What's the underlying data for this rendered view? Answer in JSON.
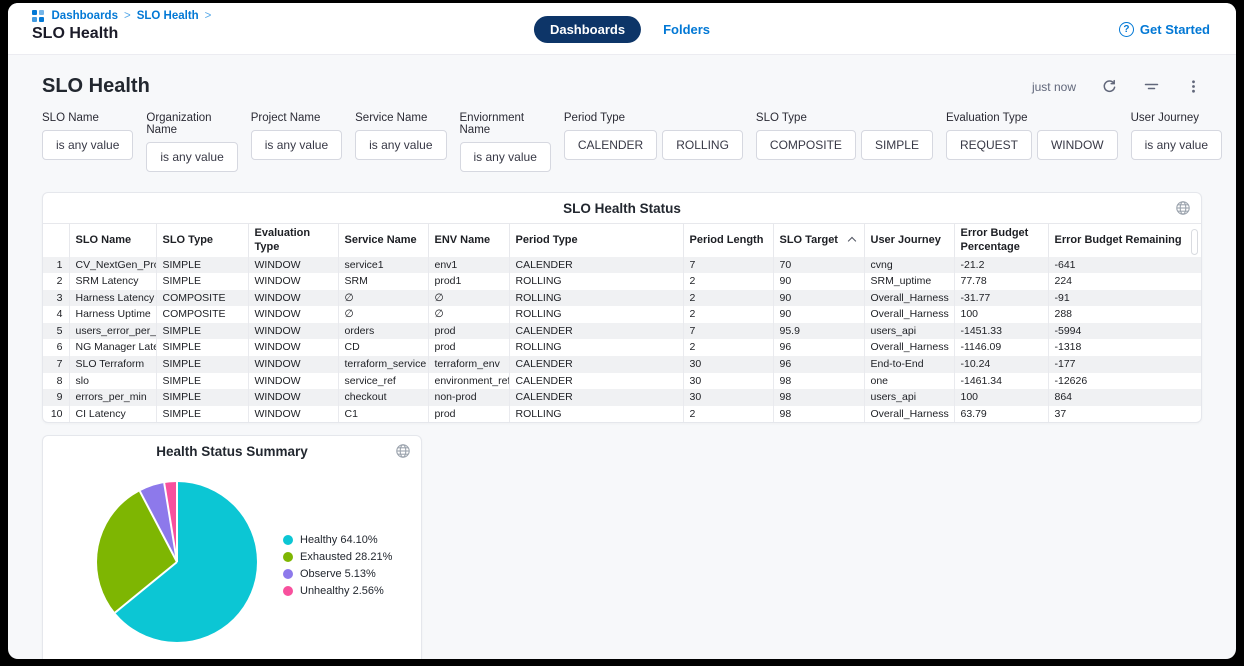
{
  "topbar": {
    "breadcrumb": {
      "items": [
        "Dashboards",
        "SLO Health"
      ],
      "separator": ">"
    },
    "page_title": "SLO Health",
    "tabs": {
      "dashboards": "Dashboards",
      "folders": "Folders"
    },
    "help": {
      "label": "Get Started",
      "icon_glyph": "?"
    }
  },
  "dashboard": {
    "title": "SLO Health",
    "refreshed": "just now"
  },
  "filters": [
    {
      "label": "SLO Name",
      "buttons": [
        {
          "text": "is any value"
        }
      ]
    },
    {
      "label": "Organization Name",
      "buttons": [
        {
          "text": "is any value"
        }
      ]
    },
    {
      "label": "Project Name",
      "buttons": [
        {
          "text": "is any value"
        }
      ]
    },
    {
      "label": "Service Name",
      "buttons": [
        {
          "text": "is any value"
        }
      ]
    },
    {
      "label": "Enviornment Name",
      "buttons": [
        {
          "text": "is any value"
        }
      ]
    },
    {
      "label": "Period Type",
      "buttons": [
        {
          "text": "CALENDER"
        },
        {
          "text": "ROLLING"
        }
      ]
    },
    {
      "label": "SLO Type",
      "buttons": [
        {
          "text": "COMPOSITE"
        },
        {
          "text": "SIMPLE"
        }
      ]
    },
    {
      "label": "Evaluation Type",
      "buttons": [
        {
          "text": "REQUEST"
        },
        {
          "text": "WINDOW"
        }
      ]
    },
    {
      "label": "User Journey",
      "buttons": [
        {
          "text": "is any value"
        }
      ]
    }
  ],
  "table": {
    "title": "SLO Health Status",
    "columns": [
      "SLO Name",
      "SLO Type",
      "Evaluation Type",
      "Service Name",
      "ENV Name",
      "Period Type",
      "Period Length",
      "SLO Target",
      "User Journey",
      "Error Budget Percentage",
      "Error Budget Remaining"
    ],
    "sorted_column": "SLO Target",
    "sort_direction": "asc",
    "rows": [
      [
        "CV_NextGen_Prod",
        "SIMPLE",
        "WINDOW",
        "service1",
        "env1",
        "CALENDER",
        "7",
        "70",
        "cvng",
        "-21.2",
        "-641"
      ],
      [
        "SRM Latency",
        "SIMPLE",
        "WINDOW",
        "SRM",
        "prod1",
        "ROLLING",
        "2",
        "90",
        "SRM_uptime",
        "77.78",
        "224"
      ],
      [
        "Harness Latency",
        "COMPOSITE",
        "WINDOW",
        "∅",
        "∅",
        "ROLLING",
        "2",
        "90",
        "Overall_Harness",
        "-31.77",
        "-91"
      ],
      [
        "Harness Uptime",
        "COMPOSITE",
        "WINDOW",
        "∅",
        "∅",
        "ROLLING",
        "2",
        "90",
        "Overall_Harness",
        "100",
        "288"
      ],
      [
        "users_error_per_min",
        "SIMPLE",
        "WINDOW",
        "orders",
        "prod",
        "CALENDER",
        "7",
        "95.9",
        "users_api",
        "-1451.33",
        "-5994"
      ],
      [
        "NG Manager Latency",
        "SIMPLE",
        "WINDOW",
        "CD",
        "prod",
        "ROLLING",
        "2",
        "96",
        "Overall_Harness",
        "-1146.09",
        "-1318"
      ],
      [
        "SLO Terraform",
        "SIMPLE",
        "WINDOW",
        "terraform_service",
        "terraform_env",
        "CALENDER",
        "30",
        "96",
        "End-to-End",
        "-10.24",
        "-177"
      ],
      [
        "slo",
        "SIMPLE",
        "WINDOW",
        "service_ref",
        "environment_ref",
        "CALENDER",
        "30",
        "98",
        "one",
        "-1461.34",
        "-12626"
      ],
      [
        "errors_per_min",
        "SIMPLE",
        "WINDOW",
        "checkout",
        "non-prod",
        "CALENDER",
        "30",
        "98",
        "users_api",
        "100",
        "864"
      ],
      [
        "CI Latency",
        "SIMPLE",
        "WINDOW",
        "C1",
        "prod",
        "ROLLING",
        "2",
        "98",
        "Overall_Harness",
        "63.79",
        "37"
      ]
    ]
  },
  "chart_data": {
    "type": "pie",
    "title": "Health Status Summary",
    "labels": [
      "Healthy",
      "Exhausted",
      "Observe",
      "Unhealthy"
    ],
    "values": [
      64.1,
      28.21,
      5.13,
      2.56
    ],
    "colors": [
      "#0cc6d4",
      "#7eb602",
      "#8d79eb",
      "#f8509d"
    ],
    "legend_position": "right",
    "legend_items": [
      {
        "label": "Healthy 64.10%",
        "color": "#0cc6d4"
      },
      {
        "label": "Exhausted 28.21%",
        "color": "#7eb602"
      },
      {
        "label": "Observe 5.13%",
        "color": "#8d79eb"
      },
      {
        "label": "Unhealthy 2.56%",
        "color": "#f8509d"
      }
    ]
  },
  "colors": {
    "accent_blue": "#0278d5",
    "navy_pill": "#0d3568",
    "content_bg": "#f7f8fa",
    "row_stripe": "#f0f1f3"
  }
}
